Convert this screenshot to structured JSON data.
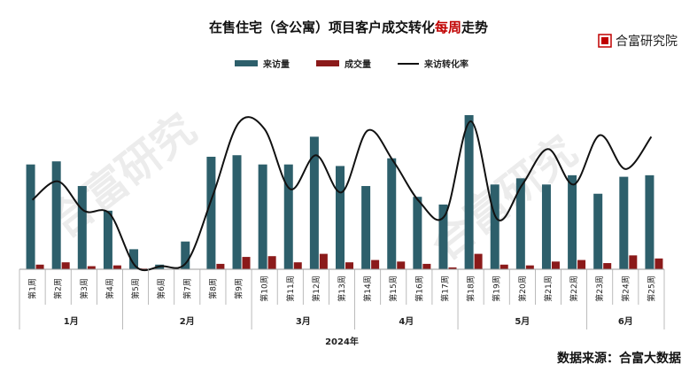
{
  "title_part1": "在售住宅（含公寓）项目客户成交转化",
  "title_highlight": "每周",
  "title_part2": "走势",
  "brand": "合富研究院",
  "watermark": "合富研究",
  "footer": "数据来源：合富大数据",
  "colors": {
    "visits": "#2d5f6b",
    "deals": "#8b1a1a",
    "rate": "#111111",
    "highlight": "#c00000"
  },
  "chart_data": {
    "type": "bar",
    "categories": [
      "第1周",
      "第2周",
      "第3周",
      "第4周",
      "第5周",
      "第6周",
      "第7周",
      "第8周",
      "第9周",
      "第10周",
      "第11周",
      "第12周",
      "第13周",
      "第14周",
      "第15周",
      "第16周",
      "第17周",
      "第18周",
      "第19周",
      "第20周",
      "第21周",
      "第22周",
      "第23周",
      "第24周",
      "第25周"
    ],
    "series": [
      {
        "name": "来访量",
        "kind": "bar",
        "values": [
          68,
          70,
          54,
          38,
          13,
          3,
          18,
          73,
          74,
          68,
          68,
          86,
          67,
          54,
          72,
          47,
          42,
          100,
          55,
          59,
          55,
          61,
          49,
          60,
          61
        ]
      },
      {
        "name": "成交量",
        "kind": "bar",
        "values": [
          3,
          4.5,
          2,
          2.5,
          0.5,
          0,
          0,
          3.5,
          8,
          8.5,
          4.5,
          10,
          4.5,
          6,
          5,
          3.5,
          1.2,
          10,
          3,
          2.5,
          5,
          6,
          4,
          9,
          7
        ]
      },
      {
        "name": "来访转化率",
        "kind": "line",
        "values": [
          45,
          57,
          38,
          36,
          2,
          2,
          5,
          48,
          95,
          91,
          52,
          74,
          50,
          90,
          70,
          44,
          35,
          96,
          33,
          55,
          78,
          55,
          87,
          65,
          86
        ]
      }
    ],
    "groups": [
      {
        "label": "1月",
        "start": 0,
        "end": 3
      },
      {
        "label": "2月",
        "start": 4,
        "end": 8
      },
      {
        "label": "3月",
        "start": 9,
        "end": 12
      },
      {
        "label": "4月",
        "start": 13,
        "end": 16
      },
      {
        "label": "5月",
        "start": 17,
        "end": 21
      },
      {
        "label": "6月",
        "start": 22,
        "end": 24
      }
    ],
    "xlabel": "2024年",
    "ylim": [
      0,
      100
    ],
    "grid": false,
    "legend_position": "top"
  }
}
